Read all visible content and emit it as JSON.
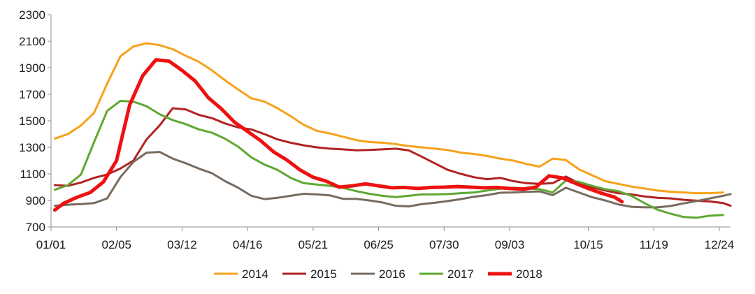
{
  "chart_data": {
    "type": "line",
    "title": "",
    "xlabel": "",
    "ylabel": "",
    "ylim": [
      700,
      2300
    ],
    "yticks": [
      700,
      900,
      1100,
      1300,
      1500,
      1700,
      1900,
      2100,
      2300
    ],
    "xlim": [
      1,
      364
    ],
    "xticks": [
      {
        "day": 1,
        "label": "01/01"
      },
      {
        "day": 36,
        "label": "02/05"
      },
      {
        "day": 71,
        "label": "03/12"
      },
      {
        "day": 106,
        "label": "04/16"
      },
      {
        "day": 141,
        "label": "05/21"
      },
      {
        "day": 176,
        "label": "06/25"
      },
      {
        "day": 211,
        "label": "07/30"
      },
      {
        "day": 246,
        "label": "09/03"
      },
      {
        "day": 288,
        "label": "10/15"
      },
      {
        "day": 323,
        "label": "11/19"
      },
      {
        "day": 358,
        "label": "12/24"
      }
    ],
    "legend_position": "bottom",
    "grid": false,
    "series": [
      {
        "name": "2014",
        "color": "#F7A21B",
        "width": 3,
        "points": [
          [
            3,
            1365
          ],
          [
            10,
            1400
          ],
          [
            17,
            1465
          ],
          [
            24,
            1560
          ],
          [
            31,
            1780
          ],
          [
            38,
            1985
          ],
          [
            45,
            2060
          ],
          [
            52,
            2085
          ],
          [
            59,
            2070
          ],
          [
            66,
            2040
          ],
          [
            73,
            1990
          ],
          [
            80,
            1945
          ],
          [
            87,
            1880
          ],
          [
            94,
            1805
          ],
          [
            101,
            1735
          ],
          [
            108,
            1670
          ],
          [
            115,
            1645
          ],
          [
            122,
            1595
          ],
          [
            129,
            1535
          ],
          [
            136,
            1470
          ],
          [
            143,
            1425
          ],
          [
            150,
            1405
          ],
          [
            157,
            1380
          ],
          [
            164,
            1355
          ],
          [
            171,
            1340
          ],
          [
            178,
            1335
          ],
          [
            185,
            1325
          ],
          [
            192,
            1310
          ],
          [
            199,
            1300
          ],
          [
            206,
            1290
          ],
          [
            213,
            1280
          ],
          [
            220,
            1260
          ],
          [
            227,
            1250
          ],
          [
            234,
            1235
          ],
          [
            241,
            1215
          ],
          [
            248,
            1200
          ],
          [
            255,
            1175
          ],
          [
            262,
            1155
          ],
          [
            269,
            1215
          ],
          [
            276,
            1205
          ],
          [
            283,
            1135
          ],
          [
            290,
            1090
          ],
          [
            297,
            1045
          ],
          [
            304,
            1025
          ],
          [
            311,
            1005
          ],
          [
            318,
            990
          ],
          [
            325,
            975
          ],
          [
            332,
            965
          ],
          [
            339,
            960
          ],
          [
            346,
            955
          ],
          [
            353,
            955
          ],
          [
            360,
            960
          ]
        ]
      },
      {
        "name": "2015",
        "color": "#B22222",
        "width": 3,
        "points": [
          [
            3,
            1015
          ],
          [
            10,
            1010
          ],
          [
            17,
            1035
          ],
          [
            24,
            1070
          ],
          [
            31,
            1095
          ],
          [
            38,
            1140
          ],
          [
            45,
            1200
          ],
          [
            52,
            1360
          ],
          [
            59,
            1465
          ],
          [
            66,
            1595
          ],
          [
            73,
            1585
          ],
          [
            80,
            1545
          ],
          [
            87,
            1520
          ],
          [
            94,
            1480
          ],
          [
            101,
            1450
          ],
          [
            108,
            1435
          ],
          [
            115,
            1400
          ],
          [
            122,
            1360
          ],
          [
            129,
            1335
          ],
          [
            136,
            1315
          ],
          [
            143,
            1300
          ],
          [
            150,
            1290
          ],
          [
            157,
            1285
          ],
          [
            164,
            1278
          ],
          [
            171,
            1280
          ],
          [
            178,
            1285
          ],
          [
            185,
            1290
          ],
          [
            192,
            1278
          ],
          [
            199,
            1230
          ],
          [
            206,
            1180
          ],
          [
            213,
            1130
          ],
          [
            220,
            1100
          ],
          [
            227,
            1075
          ],
          [
            234,
            1060
          ],
          [
            241,
            1070
          ],
          [
            248,
            1045
          ],
          [
            255,
            1030
          ],
          [
            262,
            1025
          ],
          [
            269,
            1030
          ],
          [
            276,
            1080
          ],
          [
            283,
            1030
          ],
          [
            290,
            1000
          ],
          [
            297,
            975
          ],
          [
            304,
            955
          ],
          [
            311,
            945
          ],
          [
            318,
            930
          ],
          [
            325,
            920
          ],
          [
            332,
            915
          ],
          [
            339,
            905
          ],
          [
            346,
            898
          ],
          [
            353,
            892
          ],
          [
            360,
            880
          ],
          [
            367,
            860
          ]
        ]
      },
      {
        "name": "2016",
        "color": "#786B5F",
        "width": 3,
        "points": [
          [
            3,
            860
          ],
          [
            10,
            868
          ],
          [
            17,
            872
          ],
          [
            24,
            880
          ],
          [
            31,
            915
          ],
          [
            38,
            1075
          ],
          [
            45,
            1190
          ],
          [
            52,
            1260
          ],
          [
            59,
            1265
          ],
          [
            66,
            1215
          ],
          [
            73,
            1180
          ],
          [
            80,
            1140
          ],
          [
            87,
            1105
          ],
          [
            94,
            1045
          ],
          [
            101,
            995
          ],
          [
            108,
            935
          ],
          [
            115,
            910
          ],
          [
            122,
            920
          ],
          [
            129,
            935
          ],
          [
            136,
            950
          ],
          [
            143,
            945
          ],
          [
            150,
            938
          ],
          [
            157,
            912
          ],
          [
            164,
            912
          ],
          [
            171,
            900
          ],
          [
            178,
            885
          ],
          [
            185,
            860
          ],
          [
            192,
            855
          ],
          [
            199,
            872
          ],
          [
            206,
            882
          ],
          [
            213,
            895
          ],
          [
            220,
            910
          ],
          [
            227,
            928
          ],
          [
            234,
            940
          ],
          [
            241,
            958
          ],
          [
            248,
            960
          ],
          [
            255,
            965
          ],
          [
            262,
            968
          ],
          [
            269,
            940
          ],
          [
            276,
            995
          ],
          [
            283,
            960
          ],
          [
            290,
            925
          ],
          [
            297,
            900
          ],
          [
            304,
            870
          ],
          [
            311,
            852
          ],
          [
            318,
            848
          ],
          [
            325,
            848
          ],
          [
            332,
            858
          ],
          [
            339,
            878
          ],
          [
            346,
            895
          ],
          [
            353,
            915
          ],
          [
            360,
            935
          ],
          [
            367,
            948
          ]
        ]
      },
      {
        "name": "2017",
        "color": "#5FA832",
        "width": 3,
        "points": [
          [
            3,
            980
          ],
          [
            10,
            1015
          ],
          [
            17,
            1095
          ],
          [
            24,
            1340
          ],
          [
            31,
            1575
          ],
          [
            38,
            1650
          ],
          [
            45,
            1645
          ],
          [
            52,
            1610
          ],
          [
            59,
            1550
          ],
          [
            66,
            1505
          ],
          [
            73,
            1475
          ],
          [
            80,
            1435
          ],
          [
            87,
            1410
          ],
          [
            94,
            1365
          ],
          [
            101,
            1305
          ],
          [
            108,
            1225
          ],
          [
            115,
            1170
          ],
          [
            122,
            1130
          ],
          [
            129,
            1070
          ],
          [
            136,
            1030
          ],
          [
            143,
            1020
          ],
          [
            150,
            1010
          ],
          [
            157,
            995
          ],
          [
            164,
            970
          ],
          [
            171,
            950
          ],
          [
            178,
            935
          ],
          [
            185,
            925
          ],
          [
            192,
            935
          ],
          [
            199,
            945
          ],
          [
            206,
            945
          ],
          [
            213,
            948
          ],
          [
            220,
            955
          ],
          [
            227,
            960
          ],
          [
            234,
            975
          ],
          [
            241,
            988
          ],
          [
            248,
            995
          ],
          [
            255,
            990
          ],
          [
            262,
            985
          ],
          [
            269,
            960
          ],
          [
            276,
            1050
          ],
          [
            283,
            1040
          ],
          [
            290,
            1010
          ],
          [
            297,
            985
          ],
          [
            304,
            970
          ],
          [
            311,
            935
          ],
          [
            318,
            880
          ],
          [
            325,
            830
          ],
          [
            332,
            800
          ],
          [
            339,
            775
          ],
          [
            346,
            770
          ],
          [
            353,
            785
          ],
          [
            360,
            790
          ]
        ]
      },
      {
        "name": "2018",
        "color": "#EE1111",
        "width": 5,
        "points": [
          [
            3,
            828
          ],
          [
            8,
            880
          ],
          [
            15,
            925
          ],
          [
            22,
            960
          ],
          [
            29,
            1040
          ],
          [
            36,
            1200
          ],
          [
            43,
            1620
          ],
          [
            50,
            1840
          ],
          [
            57,
            1960
          ],
          [
            64,
            1950
          ],
          [
            71,
            1880
          ],
          [
            78,
            1800
          ],
          [
            85,
            1675
          ],
          [
            92,
            1590
          ],
          [
            99,
            1490
          ],
          [
            106,
            1420
          ],
          [
            113,
            1350
          ],
          [
            120,
            1265
          ],
          [
            127,
            1205
          ],
          [
            134,
            1130
          ],
          [
            141,
            1075
          ],
          [
            148,
            1045
          ],
          [
            155,
            1000
          ],
          [
            162,
            1010
          ],
          [
            169,
            1025
          ],
          [
            176,
            1010
          ],
          [
            183,
            995
          ],
          [
            190,
            998
          ],
          [
            197,
            990
          ],
          [
            204,
            998
          ],
          [
            211,
            1000
          ],
          [
            218,
            1005
          ],
          [
            225,
            1000
          ],
          [
            232,
            995
          ],
          [
            239,
            998
          ],
          [
            246,
            990
          ],
          [
            253,
            985
          ],
          [
            260,
            1000
          ],
          [
            267,
            1085
          ],
          [
            274,
            1070
          ],
          [
            281,
            1030
          ],
          [
            288,
            990
          ],
          [
            295,
            955
          ],
          [
            302,
            925
          ],
          [
            306,
            890
          ]
        ]
      }
    ]
  }
}
